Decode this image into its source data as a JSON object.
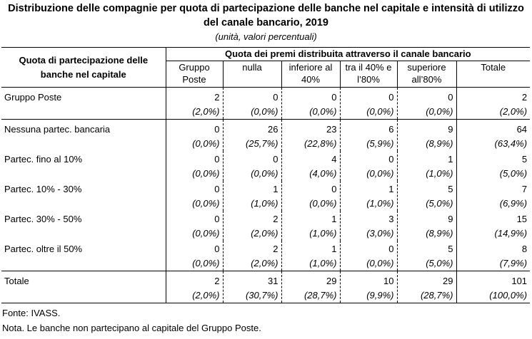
{
  "title_line1": "Distribuzione delle compagnie per quota di partecipazione delle banche nel capitale e intensità di utilizzo",
  "title_line2": "del canale bancario, 2019",
  "subtitle": "(unità, valori percentuali)",
  "header": {
    "row_header": "Quota di partecipazione delle banche nel capitale",
    "group_header": "Quota dei premi distribuita attraverso il canale bancario",
    "columns": [
      [
        "Gruppo",
        "Poste"
      ],
      [
        "nulla",
        ""
      ],
      [
        "inferiore al",
        "40%"
      ],
      [
        "tra il 40% e",
        "l’80%"
      ],
      [
        "superiore",
        "all’80%"
      ],
      [
        "Totale",
        ""
      ]
    ]
  },
  "rows": [
    {
      "label": "Gruppo Poste",
      "values": [
        "2",
        "0",
        "0",
        "0",
        "0",
        "2"
      ],
      "pcts": [
        "(2,0%)",
        "(0,0%)",
        "(0,0%)",
        "(0,0%)",
        "(0,0%)",
        "(2,0%)"
      ]
    },
    {
      "label": "Nessuna partec. bancaria",
      "values": [
        "0",
        "26",
        "23",
        "6",
        "9",
        "64"
      ],
      "pcts": [
        "(0,0%)",
        "(25,7%)",
        "(22,8%)",
        "(5,9%)",
        "(8,9%)",
        "(63,4%)"
      ]
    },
    {
      "label": "Partec. fino al 10%",
      "values": [
        "0",
        "0",
        "4",
        "0",
        "1",
        "5"
      ],
      "pcts": [
        "(0,0%)",
        "(0,0%)",
        "(4,0%)",
        "(0,0%)",
        "(1,0%)",
        "(5,0%)"
      ]
    },
    {
      "label": "Partec. 10% - 30%",
      "values": [
        "0",
        "1",
        "0",
        "1",
        "5",
        "7"
      ],
      "pcts": [
        "(0,0%)",
        "(1,0%)",
        "(0,0%)",
        "(1,0%)",
        "(5,0%)",
        "(6,9%)"
      ]
    },
    {
      "label": "Partec. 30% - 50%",
      "values": [
        "0",
        "2",
        "1",
        "3",
        "9",
        "15"
      ],
      "pcts": [
        "(0,0%)",
        "(2,0%)",
        "(1,0%)",
        "(3,0%)",
        "(8,9%)",
        "(14,9%)"
      ]
    },
    {
      "label": "Partec. oltre il 50%",
      "values": [
        "0",
        "2",
        "1",
        "0",
        "5",
        "8"
      ],
      "pcts": [
        "(0,0%)",
        "(2,0%)",
        "(1,0%)",
        "(0,0%)",
        "(5,0%)",
        "(7,9%)"
      ]
    }
  ],
  "total": {
    "label": "Totale",
    "values": [
      "2",
      "31",
      "29",
      "10",
      "29",
      "101"
    ],
    "pcts": [
      "(2,0%)",
      "(30,7%)",
      "(28,7%)",
      "(9,9%)",
      "(28,7%)",
      "(100,0%)"
    ]
  },
  "source": "Fonte: IVASS.",
  "note": "Nota. Le banche non partecipano al capitale del Gruppo Poste."
}
